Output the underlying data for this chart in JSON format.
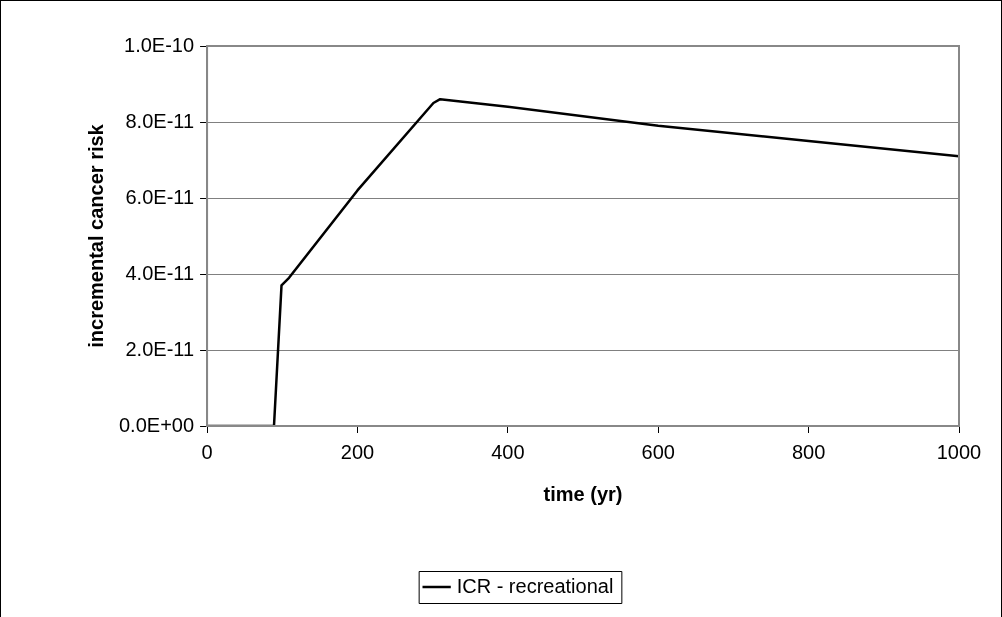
{
  "chart_data": {
    "type": "line",
    "xlabel": "time (yr)",
    "ylabel": "incremental cancer risk",
    "x": [
      0,
      89,
      99,
      109,
      200,
      301,
      310,
      400,
      600,
      800,
      1000
    ],
    "series": [
      {
        "name": "ICR - recreational",
        "color": "#000000",
        "values": [
          0,
          0,
          3.7e-11,
          3.9e-11,
          6.2e-11,
          8.5e-11,
          8.6e-11,
          8.4e-11,
          7.9e-11,
          7.5e-11,
          7.1e-11
        ]
      }
    ],
    "xlim": [
      0,
      1000
    ],
    "xticks": [
      0,
      200,
      400,
      600,
      800,
      1000
    ],
    "ylim": [
      0,
      1e-10
    ],
    "yticks": [
      {
        "value": 0,
        "label": "0.0E+00"
      },
      {
        "value": 2e-11,
        "label": "2.0E-11"
      },
      {
        "value": 4e-11,
        "label": "4.0E-11"
      },
      {
        "value": 6e-11,
        "label": "6.0E-11"
      },
      {
        "value": 8e-11,
        "label": "8.0E-11"
      },
      {
        "value": 1e-10,
        "label": "1.0E-10"
      }
    ],
    "grid": "y",
    "legend": "bottom",
    "marker": "none",
    "line_style": "solid"
  }
}
